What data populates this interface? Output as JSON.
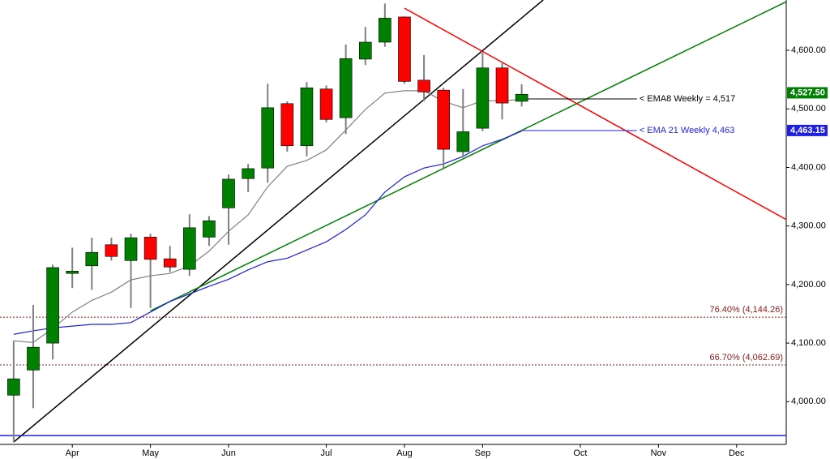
{
  "chart_data": {
    "type": "candlestick",
    "xlim": [
      -0.7,
      39.54
    ],
    "ylim": [
      3927,
      4686
    ],
    "xticks": [
      {
        "value": 3,
        "label": "Apr"
      },
      {
        "value": 7,
        "label": "May"
      },
      {
        "value": 11,
        "label": "Jun"
      },
      {
        "value": 16,
        "label": "Jul"
      },
      {
        "value": 20,
        "label": "Aug"
      },
      {
        "value": 24,
        "label": "Sep"
      },
      {
        "value": 29,
        "label": "Oct"
      },
      {
        "value": 33,
        "label": "Nov"
      },
      {
        "value": 37,
        "label": "Dec"
      }
    ],
    "yticks": [
      {
        "value": 4000,
        "label": "4,000.00"
      },
      {
        "value": 4100,
        "label": "4,100.00"
      },
      {
        "value": 4200,
        "label": "4,200.00"
      },
      {
        "value": 4300,
        "label": "4,300.00"
      },
      {
        "value": 4400,
        "label": "4,400.00"
      },
      {
        "value": 4500,
        "label": "4,500.00"
      },
      {
        "value": 4600,
        "label": "4,600.00"
      }
    ],
    "up_color": "#008000",
    "down_color": "#ff0000",
    "x": [
      0,
      1,
      2,
      3,
      4,
      5,
      6,
      7,
      8,
      9,
      10,
      11,
      12,
      13,
      14,
      15,
      16,
      17,
      18,
      19,
      20,
      21,
      22,
      23,
      24,
      25,
      26
    ],
    "open": [
      4011,
      4054,
      4100,
      4219,
      4232,
      4268,
      4241,
      4281,
      4244,
      4226,
      4281,
      4331,
      4381,
      4399,
      4509,
      4437,
      4534,
      4485,
      4585,
      4614,
      4657,
      4549,
      4532,
      4427,
      4467,
      4570,
      4513
    ],
    "high": [
      4104,
      4165,
      4234,
      4263,
      4280,
      4280,
      4287,
      4287,
      4266,
      4320,
      4317,
      4388,
      4406,
      4543,
      4513,
      4546,
      4540,
      4610,
      4640,
      4680,
      4658,
      4592,
      4536,
      4534,
      4596,
      4578,
      4542
    ],
    "low": [
      3931,
      3989,
      4072,
      4194,
      4191,
      4241,
      4160,
      4160,
      4221,
      4215,
      4266,
      4268,
      4358,
      4374,
      4427,
      4419,
      4477,
      4457,
      4575,
      4606,
      4543,
      4513,
      4399,
      4417,
      4462,
      4482,
      4504
    ],
    "close": [
      4039,
      4093,
      4229,
      4223,
      4255,
      4248,
      4280,
      4243,
      4230,
      4297,
      4309,
      4380,
      4398,
      4502,
      4437,
      4536,
      4482,
      4586,
      4614,
      4655,
      4547,
      4529,
      4431,
      4461,
      4570,
      4510,
      4525
    ],
    "series": [
      {
        "color": "#808080",
        "values": [
          4104,
          4101,
          4125,
          4153,
          4173,
          4187,
          4208,
          4215,
          4219,
          4232,
          4257,
          4291,
          4319,
          4367,
          4402,
          4412,
          4430,
          4464,
          4499,
          4527,
          4531,
          4531,
          4513,
          4502,
          4514,
          4514,
          4516
        ],
        "extend_to": 31.9,
        "extend_value": 4517,
        "extend_color": "#000000",
        "label": "< EMA8 Weekly = 4,517",
        "label_color": "#000000"
      },
      {
        "color": "#1f1fdf",
        "values": [
          4115,
          4121,
          4126,
          4129,
          4132,
          4132,
          4135,
          4153,
          4171,
          4184,
          4197,
          4209,
          4225,
          4239,
          4245,
          4259,
          4273,
          4294,
          4319,
          4358,
          4384,
          4399,
          4406,
          4419,
          4437,
          4448,
          4462
        ],
        "extend_to": 31.9,
        "extend_value": 4463,
        "extend_color": "#1f1fdf",
        "label": "< EMA 21 Weekly 4,463",
        "label_color": "#1f1fdf"
      }
    ],
    "trendlines": [
      {
        "color": "#000000",
        "x": [
          0,
          27.1
        ],
        "values": [
          3931,
          4686
        ]
      },
      {
        "color": "#008000",
        "x": [
          7,
          39.54
        ],
        "values": [
          4155,
          4683
        ]
      },
      {
        "color": "#ff0000",
        "x": [
          20,
          39.54
        ],
        "values": [
          4672,
          4311
        ]
      },
      {
        "color": "#1f1fdf",
        "x": [
          -0.7,
          39.54
        ],
        "values": [
          3942,
          3942
        ]
      }
    ],
    "levels": [
      {
        "value": 4144.26,
        "label": "76.40% (4,144.26)"
      },
      {
        "value": 4062.69,
        "label": "66.70% (4,062.69)"
      }
    ],
    "level_color": "#8b1a1a",
    "price_tags": [
      {
        "value": 4527.5,
        "label": "4,527.50",
        "color": "#008000"
      },
      {
        "value": 4463.15,
        "label": "4,463.15",
        "color": "#1f1fdf"
      }
    ]
  }
}
